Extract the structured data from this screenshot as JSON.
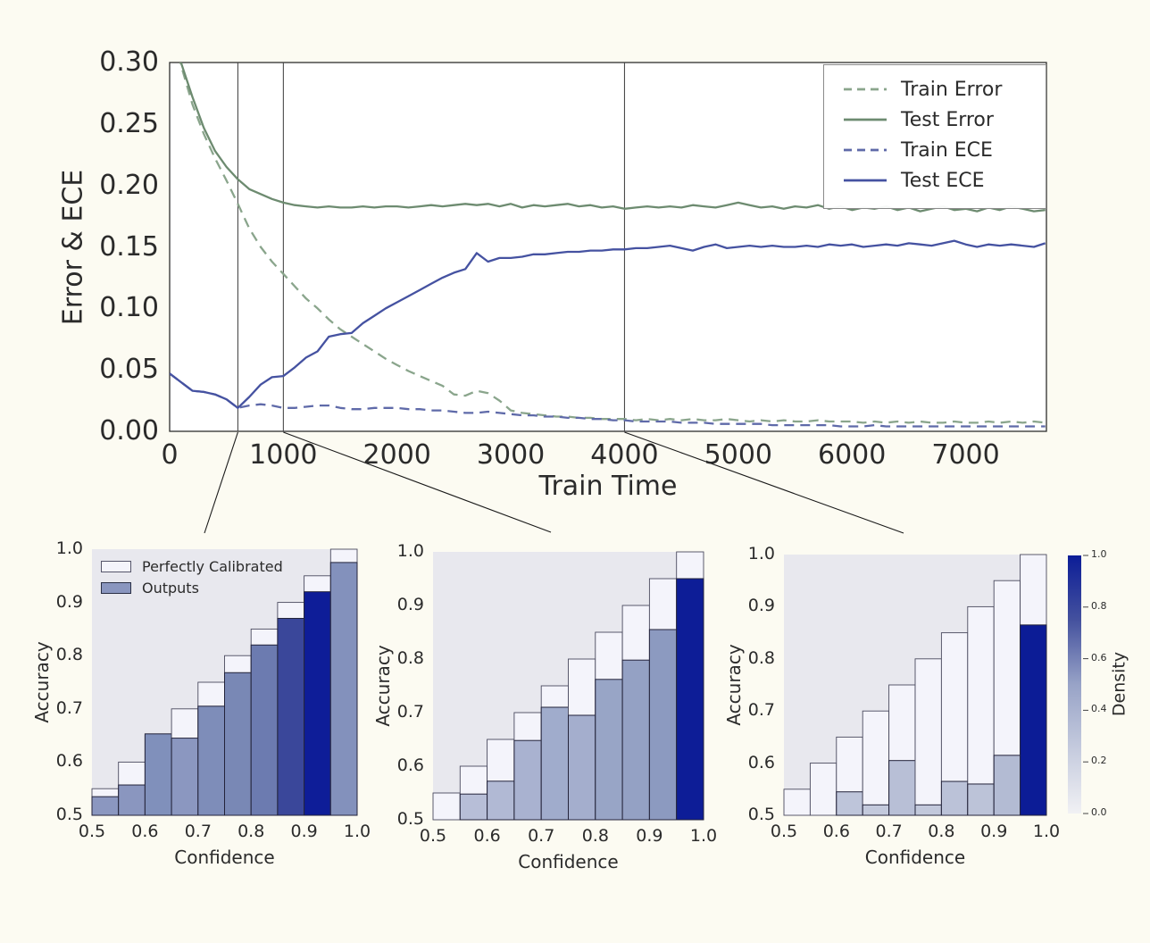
{
  "figure": {
    "background": "#fcfbf2",
    "axes_background_top": "#ffffff",
    "axes_background_bottom": "#e8e8ee",
    "navy_high_density": "#0c1d97",
    "green": "#6d8b70",
    "blue": "#4552a1"
  },
  "top_chart": {
    "xlabel": "Train Time",
    "ylabel": "Error & ECE",
    "yticks": [
      "0.00",
      "0.05",
      "0.10",
      "0.15",
      "0.20",
      "0.25",
      "0.30"
    ],
    "xticks": [
      "0",
      "1000",
      "2000",
      "3000",
      "4000",
      "5000",
      "6000",
      "7000"
    ],
    "legend": [
      {
        "label": "Train Error",
        "style": "dashed",
        "color": "#8aa58c"
      },
      {
        "label": "Test Error",
        "style": "solid",
        "color": "#6d8b70"
      },
      {
        "label": "Train ECE",
        "style": "dashed",
        "color": "#5f6aa9"
      },
      {
        "label": "Test ECE",
        "style": "solid",
        "color": "#4552a1"
      }
    ]
  },
  "subplot_common": {
    "xlabel": "Confidence",
    "ylabel": "Accuracy",
    "xticks": [
      "0.5",
      "0.6",
      "0.7",
      "0.8",
      "0.9",
      "1.0"
    ],
    "yticks": [
      "0.5",
      "0.6",
      "0.7",
      "0.8",
      "0.9",
      "1.0"
    ]
  },
  "subplot1_legend": {
    "items": [
      {
        "label": "Perfectly Calibrated",
        "fill": "#f4f4fb",
        "edge": "#55556a"
      },
      {
        "label": "Outputs",
        "fill": "#8a96bf",
        "edge": "#2a2f45"
      }
    ]
  },
  "colorbar": {
    "label": "Density",
    "ticks": [
      "0.0",
      "0.2",
      "0.4",
      "0.6",
      "0.8",
      "1.0"
    ],
    "gradient_stops": [
      "#f1f1f4",
      "#c5cbde",
      "#98a3c7",
      "#44519e",
      "#0c1d97"
    ]
  },
  "chart_data": [
    {
      "type": "line",
      "title": "",
      "xlabel": "Train Time",
      "ylabel": "Error & ECE",
      "xlim": [
        0,
        7710
      ],
      "ylim": [
        0.0,
        0.3
      ],
      "grid": false,
      "legend_position": "upper right",
      "vlines_x": [
        600,
        1000,
        4000
      ],
      "x_step": 100,
      "series": [
        {
          "name": "Train Error",
          "style": "dashed",
          "color": "#8aa58c",
          "values": [
            0.345,
            0.298,
            0.266,
            0.242,
            0.222,
            0.204,
            0.185,
            0.165,
            0.15,
            0.138,
            0.128,
            0.118,
            0.108,
            0.1,
            0.091,
            0.083,
            0.077,
            0.071,
            0.065,
            0.059,
            0.054,
            0.049,
            0.045,
            0.041,
            0.037,
            0.03,
            0.029,
            0.033,
            0.031,
            0.025,
            0.017,
            0.015,
            0.014,
            0.013,
            0.012,
            0.012,
            0.011,
            0.011,
            0.01,
            0.01,
            0.01,
            0.009,
            0.01,
            0.009,
            0.01,
            0.009,
            0.01,
            0.009,
            0.009,
            0.01,
            0.009,
            0.008,
            0.009,
            0.008,
            0.009,
            0.008,
            0.008,
            0.009,
            0.008,
            0.008,
            0.008,
            0.007,
            0.008,
            0.007,
            0.008,
            0.007,
            0.008,
            0.007,
            0.007,
            0.008,
            0.007,
            0.007,
            0.008,
            0.007,
            0.008,
            0.007,
            0.008,
            0.007
          ]
        },
        {
          "name": "Test Error",
          "style": "solid",
          "color": "#6d8b70",
          "values": [
            0.345,
            0.3,
            0.272,
            0.247,
            0.228,
            0.215,
            0.205,
            0.197,
            0.193,
            0.189,
            0.186,
            0.184,
            0.183,
            0.182,
            0.183,
            0.182,
            0.182,
            0.183,
            0.182,
            0.183,
            0.183,
            0.182,
            0.183,
            0.184,
            0.183,
            0.184,
            0.185,
            0.184,
            0.185,
            0.183,
            0.185,
            0.182,
            0.184,
            0.183,
            0.184,
            0.185,
            0.183,
            0.184,
            0.182,
            0.183,
            0.181,
            0.182,
            0.183,
            0.182,
            0.183,
            0.182,
            0.184,
            0.183,
            0.182,
            0.184,
            0.186,
            0.184,
            0.182,
            0.183,
            0.181,
            0.183,
            0.182,
            0.184,
            0.181,
            0.183,
            0.18,
            0.182,
            0.181,
            0.183,
            0.18,
            0.182,
            0.179,
            0.181,
            0.183,
            0.18,
            0.181,
            0.179,
            0.182,
            0.18,
            0.183,
            0.181,
            0.179,
            0.18
          ]
        },
        {
          "name": "Train ECE",
          "style": "dashed",
          "color": "#5f6aa9",
          "values": [
            0.047,
            0.04,
            0.033,
            0.032,
            0.03,
            0.026,
            0.019,
            0.021,
            0.022,
            0.021,
            0.019,
            0.019,
            0.02,
            0.021,
            0.021,
            0.019,
            0.018,
            0.018,
            0.019,
            0.019,
            0.019,
            0.018,
            0.018,
            0.017,
            0.017,
            0.016,
            0.015,
            0.015,
            0.016,
            0.015,
            0.014,
            0.013,
            0.013,
            0.012,
            0.012,
            0.011,
            0.011,
            0.01,
            0.01,
            0.009,
            0.009,
            0.008,
            0.008,
            0.008,
            0.008,
            0.007,
            0.007,
            0.007,
            0.006,
            0.006,
            0.006,
            0.006,
            0.006,
            0.005,
            0.005,
            0.005,
            0.005,
            0.005,
            0.005,
            0.004,
            0.004,
            0.004,
            0.005,
            0.004,
            0.004,
            0.004,
            0.004,
            0.004,
            0.004,
            0.004,
            0.004,
            0.004,
            0.004,
            0.004,
            0.004,
            0.004,
            0.004,
            0.004
          ]
        },
        {
          "name": "Test ECE",
          "style": "solid",
          "color": "#4552a1",
          "values": [
            0.047,
            0.04,
            0.033,
            0.032,
            0.03,
            0.026,
            0.019,
            0.028,
            0.038,
            0.044,
            0.045,
            0.052,
            0.06,
            0.065,
            0.077,
            0.079,
            0.08,
            0.088,
            0.094,
            0.1,
            0.105,
            0.11,
            0.115,
            0.12,
            0.125,
            0.129,
            0.132,
            0.145,
            0.138,
            0.141,
            0.141,
            0.142,
            0.144,
            0.144,
            0.145,
            0.146,
            0.146,
            0.147,
            0.147,
            0.148,
            0.148,
            0.149,
            0.149,
            0.15,
            0.151,
            0.149,
            0.147,
            0.15,
            0.152,
            0.149,
            0.15,
            0.151,
            0.15,
            0.151,
            0.15,
            0.15,
            0.151,
            0.15,
            0.152,
            0.151,
            0.152,
            0.15,
            0.151,
            0.152,
            0.151,
            0.153,
            0.152,
            0.151,
            0.153,
            0.155,
            0.152,
            0.15,
            0.152,
            0.151,
            0.152,
            0.151,
            0.15,
            0.153
          ]
        }
      ]
    },
    {
      "type": "bar",
      "subplot": "reliability-at-train-time-600",
      "xlabel": "Confidence",
      "ylabel": "Accuracy",
      "xlim": [
        0.5,
        1.0
      ],
      "ylim": [
        0.5,
        1.0
      ],
      "bin_width": 0.05,
      "bin_left_edges": [
        0.5,
        0.55,
        0.6,
        0.65,
        0.7,
        0.75,
        0.8,
        0.85,
        0.9,
        0.95
      ],
      "perfectly_calibrated": [
        0.55,
        0.6,
        0.65,
        0.7,
        0.75,
        0.8,
        0.85,
        0.9,
        0.95,
        1.0
      ],
      "outputs": [
        0.535,
        0.557,
        0.653,
        0.645,
        0.705,
        0.768,
        0.82,
        0.87,
        0.92,
        0.975
      ],
      "bar_colors": [
        "#8b97c0",
        "#8a96bf",
        "#8090bb",
        "#8b97c0",
        "#7e8db9",
        "#7988b5",
        "#6c7bb0",
        "#3a479a",
        "#0e1d98",
        "#8391bc"
      ]
    },
    {
      "type": "bar",
      "subplot": "reliability-at-train-time-1000",
      "xlabel": "Confidence",
      "ylabel": "Accuracy",
      "xlim": [
        0.5,
        1.0
      ],
      "ylim": [
        0.5,
        1.0
      ],
      "bin_width": 0.05,
      "bin_left_edges": [
        0.5,
        0.55,
        0.6,
        0.65,
        0.7,
        0.75,
        0.8,
        0.85,
        0.9,
        0.95
      ],
      "perfectly_calibrated": [
        0.55,
        0.6,
        0.65,
        0.7,
        0.75,
        0.8,
        0.85,
        0.9,
        0.95,
        1.0
      ],
      "outputs": [
        0.5,
        0.548,
        0.572,
        0.648,
        0.71,
        0.695,
        0.762,
        0.798,
        0.855,
        0.95
      ],
      "bar_colors": [
        "#e8e8ee",
        "#b7bed7",
        "#b1b9d4",
        "#a9b2d0",
        "#a0accc",
        "#a4aecd",
        "#98a5c6",
        "#94a1c4",
        "#8c9ac0",
        "#0d1d97"
      ]
    },
    {
      "type": "bar",
      "subplot": "reliability-at-train-time-4000",
      "xlabel": "Confidence",
      "ylabel": "Accuracy",
      "xlim": [
        0.5,
        1.0
      ],
      "ylim": [
        0.5,
        1.0
      ],
      "bin_width": 0.05,
      "bin_left_edges": [
        0.5,
        0.55,
        0.6,
        0.65,
        0.7,
        0.75,
        0.8,
        0.85,
        0.9,
        0.95
      ],
      "perfectly_calibrated": [
        0.55,
        0.6,
        0.65,
        0.7,
        0.75,
        0.8,
        0.85,
        0.9,
        0.95,
        1.0
      ],
      "outputs": [
        0.5,
        0.5,
        0.545,
        0.52,
        0.605,
        0.52,
        0.565,
        0.56,
        0.615,
        0.865
      ],
      "bar_colors": [
        "#e8e8ee",
        "#e8e8ee",
        "#bec5da",
        "#c3c9dc",
        "#b8bfd6",
        "#c2c8db",
        "#bbc2d8",
        "#bcc3d8",
        "#b3bbd3",
        "#0c1c96"
      ]
    }
  ]
}
